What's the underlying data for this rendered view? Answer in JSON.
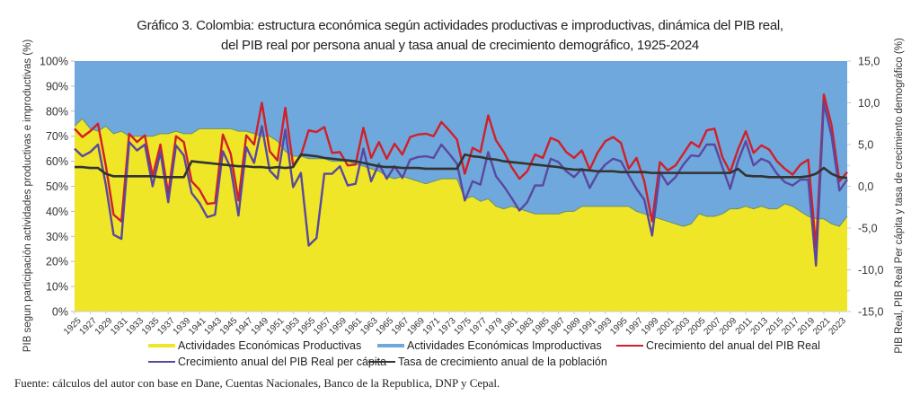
{
  "title_line1": "Gráfico 3. Colombia: estructura económica según actividades productivas e improductivas, dinámica del PIB  real,",
  "title_line2": "del PIB real por persona  anual y tasa anual de crecimiento demográfico, 1925-2024",
  "source": "Fuente: cálculos del autor con base en Dane, Cuentas Nacionales, Banco de la Republica, DNP y Cepal.",
  "colors": {
    "productivas": "#efe627",
    "improductivas": "#6fa8dc",
    "pib_real": "#d0202a",
    "pib_pc": "#5a48a0",
    "poblacion": "#333333",
    "area_edge": "#6b8e6b"
  },
  "chart_data": {
    "type": "area+line",
    "title": "Gráfico 3. Colombia: estructura económica según actividades productivas e improductivas, dinámica del PIB real, del PIB real por persona anual y tasa anual de crecimiento demográfico, 1925-2024",
    "x_start": 1925,
    "x_end": 2024,
    "xtick_labels": [
      "1925",
      "1927",
      "1929",
      "1931",
      "1933",
      "1935",
      "1937",
      "1939",
      "1941",
      "1943",
      "1945",
      "1947",
      "1949",
      "1951",
      "1953",
      "1955",
      "1957",
      "1959",
      "1961",
      "1963",
      "1965",
      "1967",
      "1969",
      "1971",
      "1973",
      "1975",
      "1977",
      "1979",
      "1981",
      "1983",
      "1985",
      "1987",
      "1989",
      "1991",
      "1993",
      "1995",
      "1997",
      "1999",
      "2001",
      "2003",
      "2005",
      "2007",
      "2009",
      "2011",
      "2013",
      "2015",
      "2017",
      "2019",
      "2021",
      "2023"
    ],
    "ylabel_left": "PIB segun participación actividades productivas e improductivas (%)",
    "ylabel_right": "PIB Real, PIB Real Per cápita y tasa de crecimiento demográfico (%)",
    "ylim_left": [
      0,
      100
    ],
    "ylim_right": [
      -15,
      15
    ],
    "yticks_left": [
      "0%",
      "10%",
      "20%",
      "30%",
      "40%",
      "50%",
      "60%",
      "70%",
      "80%",
      "90%",
      "100%"
    ],
    "yticks_right": [
      "-15,0",
      "-10,0",
      "-5,0",
      "0,0",
      "5,0",
      "10,0",
      "15,0"
    ],
    "legend_position": "bottom",
    "series": [
      {
        "name": "Actividades Económicas Productivas",
        "axis": "left",
        "kind": "stacked-area",
        "values": [
          74,
          77,
          73,
          72,
          74,
          71,
          72,
          70,
          70,
          70,
          70,
          71,
          71,
          72,
          71,
          71,
          73,
          73,
          73,
          73,
          73,
          72,
          72,
          71,
          70,
          70,
          68,
          64,
          62,
          62,
          61,
          61,
          61,
          60,
          60,
          60,
          59,
          58,
          57,
          56,
          54,
          53,
          54,
          53,
          52,
          51,
          52,
          53,
          53,
          53,
          45,
          46,
          44,
          45,
          42,
          41,
          42,
          41,
          40,
          39,
          39,
          39,
          39,
          40,
          40,
          42,
          42,
          42,
          42,
          42,
          42,
          42,
          40,
          39,
          38,
          37,
          36,
          35,
          34,
          35,
          39,
          38,
          38,
          39,
          41,
          41,
          42,
          41,
          42,
          41,
          41,
          43,
          42,
          40,
          38,
          37,
          37,
          35,
          34,
          38
        ]
      },
      {
        "name": "Actividades Económicas Improductivas",
        "axis": "left",
        "kind": "stacked-area",
        "values": [
          26,
          23,
          27,
          28,
          26,
          29,
          28,
          30,
          30,
          30,
          30,
          29,
          29,
          28,
          29,
          29,
          27,
          27,
          27,
          27,
          27,
          28,
          28,
          29,
          30,
          30,
          32,
          36,
          38,
          38,
          39,
          39,
          39,
          40,
          40,
          40,
          41,
          42,
          43,
          44,
          46,
          47,
          46,
          47,
          48,
          49,
          48,
          47,
          47,
          47,
          55,
          54,
          56,
          55,
          58,
          59,
          58,
          59,
          60,
          61,
          61,
          61,
          61,
          60,
          60,
          58,
          58,
          58,
          58,
          58,
          58,
          58,
          60,
          61,
          62,
          63,
          64,
          65,
          66,
          65,
          61,
          62,
          62,
          61,
          59,
          59,
          58,
          59,
          58,
          59,
          59,
          57,
          58,
          60,
          62,
          63,
          63,
          65,
          66,
          62
        ]
      },
      {
        "name": "Crecimiento del anual del PIB Real",
        "axis": "right",
        "kind": "line",
        "values": [
          6.9,
          5.9,
          6.6,
          7.5,
          2.5,
          -3.4,
          -4.2,
          6.3,
          5.3,
          6.1,
          1.2,
          5.0,
          -0.9,
          6.0,
          5.3,
          0.6,
          -0.4,
          -2.1,
          -2.0,
          6.2,
          3.9,
          -1.7,
          6.1,
          5.0,
          10.0,
          4.2,
          3.1,
          9.4,
          2.5,
          3.7,
          6.7,
          6.5,
          7.1,
          4.0,
          4.1,
          2.5,
          2.6,
          7.0,
          3.4,
          5.3,
          3.3,
          5.1,
          3.8,
          5.9,
          6.2,
          6.3,
          6.0,
          7.7,
          6.7,
          5.6,
          1.5,
          4.6,
          4.1,
          8.5,
          5.5,
          4.1,
          2.3,
          0.9,
          1.8,
          3.8,
          3.4,
          5.8,
          5.4,
          4.1,
          3.4,
          4.3,
          2.0,
          4.0,
          5.4,
          5.9,
          5.2,
          2.1,
          3.4,
          0.6,
          -4.2,
          2.9,
          1.9,
          2.5,
          3.9,
          5.3,
          4.7,
          6.7,
          6.9,
          3.5,
          1.7,
          4.4,
          6.6,
          4.0,
          4.9,
          4.4,
          3.0,
          2.1,
          1.4,
          2.6,
          3.2,
          -7.3,
          11.0,
          7.3,
          0.6,
          1.7
        ]
      },
      {
        "name": "Crecimiento anual del PIB Real per cápita",
        "axis": "right",
        "kind": "line",
        "values": [
          4.5,
          3.6,
          4.1,
          5.0,
          0.2,
          -5.8,
          -6.3,
          5.3,
          4.3,
          5.0,
          0.0,
          4.1,
          -1.9,
          4.9,
          3.7,
          -0.8,
          -2.0,
          -3.7,
          -3.4,
          4.2,
          2.2,
          -3.5,
          4.7,
          2.8,
          7.2,
          1.9,
          0.9,
          6.8,
          -0.1,
          1.6,
          -7.1,
          -6.2,
          1.5,
          1.5,
          2.4,
          0.1,
          0.3,
          4.5,
          0.6,
          2.7,
          0.9,
          2.4,
          1.0,
          3.2,
          3.5,
          3.6,
          3.4,
          5.0,
          3.9,
          2.7,
          -1.7,
          0.6,
          0.2,
          4.1,
          1.2,
          0.0,
          -1.4,
          -2.9,
          -1.9,
          0.1,
          0.1,
          3.3,
          2.9,
          1.8,
          1.1,
          2.1,
          -0.2,
          1.5,
          2.6,
          3.3,
          3.0,
          1.3,
          -0.3,
          -1.6,
          -5.9,
          1.7,
          0.2,
          1.1,
          2.6,
          3.7,
          3.6,
          5.0,
          5.0,
          2.3,
          -0.3,
          3.0,
          5.4,
          2.5,
          3.3,
          2.9,
          1.5,
          0.5,
          0.1,
          0.8,
          0.8,
          -9.5,
          10.0,
          6.0,
          -0.5,
          0.8
        ]
      },
      {
        "name": "Tasa de crecimiento anual de la población",
        "axis": "right",
        "kind": "line",
        "values": [
          2.3,
          2.3,
          2.2,
          2.2,
          1.5,
          1.2,
          1.2,
          1.2,
          1.2,
          1.2,
          1.2,
          1.1,
          1.1,
          1.1,
          1.1,
          3.0,
          2.9,
          2.8,
          2.7,
          2.6,
          2.5,
          2.4,
          2.4,
          2.3,
          2.3,
          2.2,
          2.3,
          2.2,
          2.3,
          3.8,
          3.7,
          3.6,
          3.4,
          3.3,
          3.2,
          3.1,
          3.0,
          2.8,
          2.6,
          2.4,
          2.3,
          2.3,
          2.2,
          2.2,
          2.2,
          2.1,
          2.1,
          2.1,
          2.1,
          2.1,
          3.8,
          3.6,
          3.5,
          3.3,
          3.2,
          3.0,
          2.9,
          2.8,
          2.7,
          2.6,
          2.5,
          2.4,
          2.3,
          2.1,
          2.0,
          2.0,
          1.9,
          1.8,
          1.8,
          1.8,
          1.7,
          1.7,
          1.7,
          1.7,
          1.6,
          1.6,
          1.6,
          1.6,
          1.6,
          1.6,
          1.6,
          1.6,
          1.6,
          1.6,
          1.6,
          2.1,
          1.3,
          1.2,
          1.2,
          1.1,
          1.1,
          1.1,
          1.1,
          1.1,
          1.2,
          1.5,
          2.2,
          1.5,
          1.1,
          1.0
        ]
      }
    ]
  },
  "legend": [
    {
      "label": "Actividades Económicas Productivas",
      "kind": "area",
      "color_key": "productivas"
    },
    {
      "label": "Actividades Económicas Improductivas",
      "kind": "area",
      "color_key": "improductivas"
    },
    {
      "label": "Crecimiento del anual del PIB Real",
      "kind": "line",
      "color_key": "pib_real"
    },
    {
      "label": "Crecimiento anual del PIB Real per cápita",
      "kind": "line",
      "color_key": "pib_pc"
    },
    {
      "label": "Tasa de crecimiento anual de la población",
      "kind": "line",
      "color_key": "poblacion"
    }
  ]
}
